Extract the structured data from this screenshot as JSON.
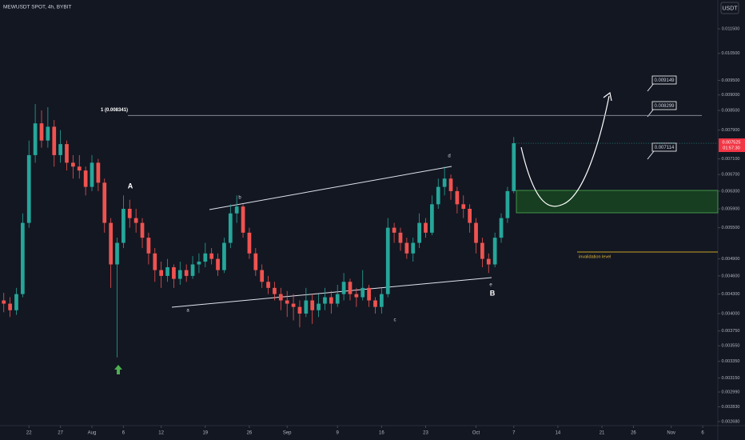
{
  "chart_data": {
    "type": "candlestick",
    "title": "MEWUSDT SPOT, 4h, BYBIT",
    "currency": "USDT",
    "countdown": "01:57:30",
    "log_scale": true,
    "grid": false,
    "up_color": "#26a69a",
    "down_color": "#ef5350",
    "xlim": [
      -4.6,
      109.4
    ],
    "xticks": [
      {
        "value": 0,
        "label": "22"
      },
      {
        "value": 5,
        "label": "27"
      },
      {
        "value": 10,
        "label": "Aug"
      },
      {
        "value": 15,
        "label": "6"
      },
      {
        "value": 21,
        "label": "12"
      },
      {
        "value": 28,
        "label": "19"
      },
      {
        "value": 35,
        "label": "26"
      },
      {
        "value": 41,
        "label": "Sep"
      },
      {
        "value": 49,
        "label": "9"
      },
      {
        "value": 56,
        "label": "16"
      },
      {
        "value": 63,
        "label": "23"
      },
      {
        "value": 71,
        "label": "Oct"
      },
      {
        "value": 77,
        "label": "7"
      },
      {
        "value": 84,
        "label": "14"
      },
      {
        "value": 91,
        "label": "21"
      },
      {
        "value": 96,
        "label": "26"
      },
      {
        "value": 102,
        "label": "Nov"
      },
      {
        "value": 107,
        "label": "6"
      }
    ],
    "ylim": [
      0.00264,
      0.0128
    ],
    "yticks": [
      {
        "value": 0.0115,
        "label": "0.011500"
      },
      {
        "value": 0.0105,
        "label": "0.010500"
      },
      {
        "value": 0.0095,
        "label": "0.009500"
      },
      {
        "value": 0.009,
        "label": "0.009000"
      },
      {
        "value": 0.0085,
        "label": "0.008500"
      },
      {
        "value": 0.0079,
        "label": "0.007900"
      },
      {
        "value": 0.0071,
        "label": "0.007100"
      },
      {
        "value": 0.0067,
        "label": "0.006700"
      },
      {
        "value": 0.0063,
        "label": "0.006300"
      },
      {
        "value": 0.0059,
        "label": "0.005900"
      },
      {
        "value": 0.0055,
        "label": "0.005500"
      },
      {
        "value": 0.0049,
        "label": "0.004900"
      },
      {
        "value": 0.0046,
        "label": "0.004600"
      },
      {
        "value": 0.0043,
        "label": "0.004300"
      },
      {
        "value": 0.004,
        "label": "0.004000"
      },
      {
        "value": 0.00375,
        "label": "0.003750"
      },
      {
        "value": 0.00355,
        "label": "0.003550"
      },
      {
        "value": 0.00335,
        "label": "0.003350"
      },
      {
        "value": 0.00315,
        "label": "0.003150"
      },
      {
        "value": 0.00299,
        "label": "0.002990"
      },
      {
        "value": 0.00283,
        "label": "0.002830"
      },
      {
        "value": 0.00268,
        "label": "0.002680"
      }
    ],
    "fib_level": {
      "value": 0.008341,
      "label": "1 (0.008341)"
    },
    "callouts": [
      "0.009149",
      "0.008299",
      "0.007114"
    ],
    "annotations": [
      "A",
      "a",
      "b",
      "c",
      "d",
      "e",
      "B"
    ],
    "invalidation": "invalidation level",
    "x": [
      -4,
      -3,
      -2,
      -1,
      0,
      1,
      2,
      3,
      4,
      5,
      6,
      7,
      8,
      9,
      10,
      11,
      12,
      13,
      14,
      15,
      16,
      17,
      18,
      19,
      20,
      21,
      22,
      23,
      24,
      25,
      26,
      27,
      28,
      29,
      30,
      31,
      32,
      33,
      34,
      35,
      36,
      37,
      38,
      39,
      40,
      41,
      42,
      43,
      44,
      45,
      46,
      47,
      48,
      49,
      50,
      51,
      52,
      53,
      54,
      55,
      56,
      57,
      58,
      59,
      60,
      61,
      62,
      63,
      64,
      65,
      66,
      67,
      68,
      69,
      70,
      71,
      72,
      73,
      74,
      75,
      76,
      77
    ],
    "open": [
      0.0042,
      0.00415,
      0.00405,
      0.0043,
      0.0056,
      0.0072,
      0.0081,
      0.0076,
      0.008,
      0.0072,
      0.0075,
      0.007,
      0.0069,
      0.0068,
      0.0064,
      0.007,
      0.0065,
      0.0056,
      0.0048,
      0.0052,
      0.0059,
      0.0057,
      0.0056,
      0.0053,
      0.005,
      0.0047,
      0.0046,
      0.00475,
      0.00455,
      0.0047,
      0.0046,
      0.0048,
      0.00485,
      0.005,
      0.0049,
      0.0047,
      0.0052,
      0.0058,
      0.00595,
      0.0054,
      0.005,
      0.0047,
      0.0045,
      0.0044,
      0.0043,
      0.0042,
      0.00415,
      0.0041,
      0.004,
      0.0042,
      0.00405,
      0.00415,
      0.00425,
      0.00415,
      0.0043,
      0.0045,
      0.0043,
      0.00425,
      0.0044,
      0.0042,
      0.0041,
      0.0043,
      0.0055,
      0.0054,
      0.0052,
      0.005,
      0.0052,
      0.0056,
      0.0054,
      0.006,
      0.0064,
      0.0066,
      0.0063,
      0.006,
      0.0059,
      0.0056,
      0.0052,
      0.0049,
      0.0048,
      0.0053,
      0.0057,
      0.0063
    ],
    "high": [
      0.00432,
      0.00425,
      0.0044,
      0.0058,
      0.0076,
      0.0087,
      0.0085,
      0.0086,
      0.0082,
      0.0079,
      0.0076,
      0.0072,
      0.0072,
      0.0069,
      0.0072,
      0.0071,
      0.0066,
      0.0057,
      0.0053,
      0.0062,
      0.0061,
      0.0059,
      0.0057,
      0.0054,
      0.0051,
      0.00485,
      0.0049,
      0.0048,
      0.00485,
      0.0048,
      0.00495,
      0.005,
      0.0052,
      0.0051,
      0.005,
      0.0053,
      0.006,
      0.0062,
      0.006,
      0.0055,
      0.0051,
      0.0048,
      0.0046,
      0.0045,
      0.0044,
      0.00435,
      0.0043,
      0.0042,
      0.0044,
      0.0043,
      0.0043,
      0.0044,
      0.00435,
      0.00445,
      0.00465,
      0.00455,
      0.0044,
      0.0047,
      0.00445,
      0.00425,
      0.0044,
      0.0057,
      0.0056,
      0.0055,
      0.0053,
      0.0053,
      0.0058,
      0.0057,
      0.0062,
      0.0066,
      0.0069,
      0.0067,
      0.0064,
      0.0062,
      0.006,
      0.0057,
      0.0053,
      0.005,
      0.0054,
      0.0058,
      0.0064,
      0.0077
    ],
    "low": [
      0.00402,
      0.00395,
      0.00398,
      0.00425,
      0.0055,
      0.007,
      0.0074,
      0.0074,
      0.0069,
      0.007,
      0.0068,
      0.0066,
      0.0066,
      0.0062,
      0.0063,
      0.0063,
      0.0054,
      0.0044,
      0.0034,
      0.0051,
      0.0055,
      0.0054,
      0.0051,
      0.0048,
      0.0045,
      0.0044,
      0.0045,
      0.0044,
      0.00445,
      0.0045,
      0.00455,
      0.00465,
      0.00475,
      0.0048,
      0.0046,
      0.00465,
      0.0051,
      0.0056,
      0.0053,
      0.0049,
      0.0046,
      0.0044,
      0.0043,
      0.0042,
      0.00405,
      0.00395,
      0.0039,
      0.0038,
      0.00395,
      0.00385,
      0.00395,
      0.00405,
      0.004,
      0.0041,
      0.0042,
      0.0042,
      0.0041,
      0.0042,
      0.0041,
      0.004,
      0.004,
      0.00425,
      0.0052,
      0.00505,
      0.0049,
      0.00485,
      0.0051,
      0.0053,
      0.00535,
      0.0059,
      0.0062,
      0.0061,
      0.0058,
      0.0057,
      0.0054,
      0.005,
      0.00475,
      0.00465,
      0.00475,
      0.0052,
      0.0056,
      0.00625
    ],
    "close": [
      0.00415,
      0.00405,
      0.0043,
      0.0056,
      0.0072,
      0.0081,
      0.0076,
      0.008,
      0.0072,
      0.0075,
      0.007,
      0.0069,
      0.0068,
      0.0064,
      0.007,
      0.0065,
      0.0056,
      0.0048,
      0.0052,
      0.0059,
      0.0057,
      0.0056,
      0.0053,
      0.005,
      0.0047,
      0.0046,
      0.00475,
      0.00455,
      0.0047,
      0.0046,
      0.0048,
      0.00485,
      0.005,
      0.0049,
      0.0047,
      0.0052,
      0.0058,
      0.00595,
      0.0054,
      0.005,
      0.0047,
      0.0045,
      0.0044,
      0.0043,
      0.0042,
      0.00415,
      0.0041,
      0.004,
      0.0042,
      0.00405,
      0.00415,
      0.00425,
      0.00415,
      0.0043,
      0.0045,
      0.0043,
      0.00425,
      0.0044,
      0.0042,
      0.0041,
      0.0043,
      0.0055,
      0.0054,
      0.0052,
      0.005,
      0.0052,
      0.0056,
      0.0054,
      0.006,
      0.0064,
      0.0066,
      0.0063,
      0.006,
      0.0059,
      0.0056,
      0.0052,
      0.0049,
      0.0048,
      0.0053,
      0.0057,
      0.0063,
      0.007525
    ]
  }
}
